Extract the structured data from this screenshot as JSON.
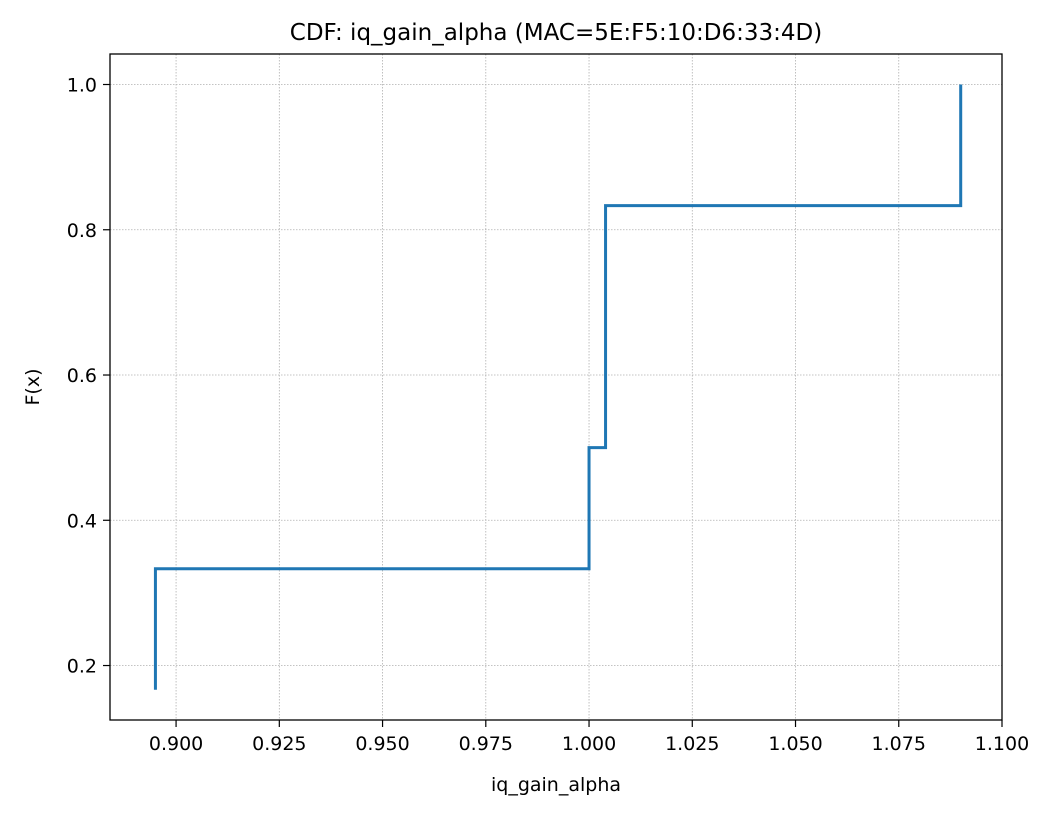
{
  "chart_data": {
    "type": "line",
    "step": "post",
    "title": "CDF: iq_gain_alpha (MAC=5E:F5:10:D6:33:4D)",
    "xlabel": "iq_gain_alpha",
    "ylabel": "F(x)",
    "xlim": [
      0.884,
      1.1
    ],
    "ylim": [
      0.125,
      1.042
    ],
    "xticks": [
      0.9,
      0.925,
      0.95,
      0.975,
      1.0,
      1.025,
      1.05,
      1.075,
      1.1
    ],
    "xtick_labels": [
      "0.900",
      "0.925",
      "0.950",
      "0.975",
      "1.000",
      "1.025",
      "1.050",
      "1.075",
      "1.100"
    ],
    "yticks": [
      0.2,
      0.4,
      0.6,
      0.8,
      1.0
    ],
    "ytick_labels": [
      "0.2",
      "0.4",
      "0.6",
      "0.8",
      "1.0"
    ],
    "grid": true,
    "series": [
      {
        "color": "#1f77b4",
        "x": [
          0.895,
          0.895,
          1.0,
          1.004,
          1.09,
          1.09
        ],
        "y": [
          0.1667,
          0.3333,
          0.5,
          0.8333,
          0.8333,
          1.0
        ]
      }
    ]
  }
}
